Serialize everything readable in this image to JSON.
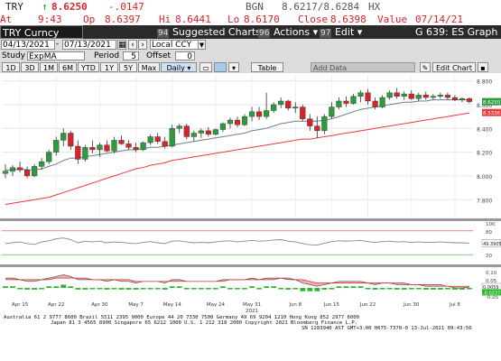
{
  "quote": {
    "ticker": "TRY",
    "arrow": "↑",
    "last": "8.6250",
    "change": "-.0147",
    "bgn_label": "BGN",
    "bid_ask": "8.6217/8.6284",
    "cursor_code": "HX",
    "at_label": "At",
    "time": "9:43",
    "op_label": "Op",
    "open": "8.6397",
    "hi_label": "Hi",
    "high": "8.6441",
    "lo_label": "Lo",
    "low": "8.6170",
    "close_label": "Close",
    "close": "8.6398",
    "value_label": "Value",
    "date": "07/14/21"
  },
  "toolbar": {
    "security": "TRY Curncy",
    "suggested_num": "94",
    "suggested": "Suggested Charts",
    "actions_num": "96",
    "actions": "Actions ▾",
    "edit_num": "97",
    "edit": "Edit ▾",
    "function": "G 639: ES Graph"
  },
  "dates": {
    "start": "04/13/2021",
    "end": "07/13/2021",
    "currency": "Local CCY"
  },
  "study": {
    "study_label": "Study",
    "study_value": "ExpMA",
    "period_label": "Period",
    "period_value": "5",
    "offset_label": "Offset",
    "offset_value": "0"
  },
  "periods": {
    "buttons": [
      "1D",
      "3D",
      "1M",
      "6M",
      "YTD",
      "1Y",
      "5Y",
      "Max"
    ],
    "frequency": "Daily ▾",
    "table": "Table",
    "add_data": "Add Data",
    "edit_chart": "Edit Chart"
  },
  "colors": {
    "up_candle": "#2e9a3e",
    "down_candle": "#d8232a",
    "ema_short": "#6a7f8a",
    "ema_long": "#e83a3a",
    "last_price_tag": "#2e9a3e",
    "long_tag": "#e83a3a",
    "rsi_line": "#888888",
    "macd_fill": "#f4b3b3",
    "hist_bar": "#2db52d"
  },
  "chart_data": {
    "type": "candlestick",
    "ylim": [
      7.65,
      8.85
    ],
    "y_ticks": [
      "8.800",
      "8.600",
      "8.400",
      "8.200",
      "8.000",
      "7.800"
    ],
    "x_labels": [
      "Apr 15",
      "Apr 22",
      "Apr 30",
      "May 7",
      "May 14",
      "May 24",
      "May 31",
      "Jun 8",
      "Jun 15",
      "Jun 22",
      "Jun 30",
      "Jul 8"
    ],
    "x_label_index": [
      2,
      7,
      13,
      18,
      23,
      29,
      34,
      40,
      45,
      50,
      56,
      62
    ],
    "year_label": "2021",
    "year_label_index": 34,
    "last_price_label": "8.6250",
    "long_ma_label": "8.5336",
    "candles": [
      {
        "o": 8.02,
        "h": 8.1,
        "l": 7.98,
        "c": 8.04
      },
      {
        "o": 8.04,
        "h": 8.09,
        "l": 8.0,
        "c": 8.07
      },
      {
        "o": 8.07,
        "h": 8.12,
        "l": 8.03,
        "c": 8.05
      },
      {
        "o": 8.05,
        "h": 8.08,
        "l": 7.98,
        "c": 8.0
      },
      {
        "o": 8.0,
        "h": 8.1,
        "l": 7.99,
        "c": 8.08
      },
      {
        "o": 8.08,
        "h": 8.15,
        "l": 8.05,
        "c": 8.12
      },
      {
        "o": 8.12,
        "h": 8.22,
        "l": 8.1,
        "c": 8.2
      },
      {
        "o": 8.2,
        "h": 8.33,
        "l": 8.17,
        "c": 8.3
      },
      {
        "o": 8.3,
        "h": 8.4,
        "l": 8.25,
        "c": 8.36
      },
      {
        "o": 8.36,
        "h": 8.38,
        "l": 8.22,
        "c": 8.25
      },
      {
        "o": 8.25,
        "h": 8.3,
        "l": 8.1,
        "c": 8.14
      },
      {
        "o": 8.14,
        "h": 8.26,
        "l": 8.12,
        "c": 8.24
      },
      {
        "o": 8.24,
        "h": 8.3,
        "l": 8.19,
        "c": 8.22
      },
      {
        "o": 8.22,
        "h": 8.28,
        "l": 8.16,
        "c": 8.26
      },
      {
        "o": 8.26,
        "h": 8.3,
        "l": 8.2,
        "c": 8.21
      },
      {
        "o": 8.21,
        "h": 8.33,
        "l": 8.19,
        "c": 8.3
      },
      {
        "o": 8.3,
        "h": 8.34,
        "l": 8.26,
        "c": 8.27
      },
      {
        "o": 8.27,
        "h": 8.3,
        "l": 8.22,
        "c": 8.24
      },
      {
        "o": 8.24,
        "h": 8.28,
        "l": 8.2,
        "c": 8.22
      },
      {
        "o": 8.22,
        "h": 8.29,
        "l": 8.21,
        "c": 8.28
      },
      {
        "o": 8.28,
        "h": 8.35,
        "l": 8.26,
        "c": 8.33
      },
      {
        "o": 8.33,
        "h": 8.36,
        "l": 8.27,
        "c": 8.29
      },
      {
        "o": 8.29,
        "h": 8.33,
        "l": 8.23,
        "c": 8.25
      },
      {
        "o": 8.25,
        "h": 8.43,
        "l": 8.24,
        "c": 8.4
      },
      {
        "o": 8.4,
        "h": 8.44,
        "l": 8.36,
        "c": 8.42
      },
      {
        "o": 8.42,
        "h": 8.44,
        "l": 8.31,
        "c": 8.33
      },
      {
        "o": 8.33,
        "h": 8.38,
        "l": 8.29,
        "c": 8.36
      },
      {
        "o": 8.36,
        "h": 8.4,
        "l": 8.32,
        "c": 8.38
      },
      {
        "o": 8.38,
        "h": 8.41,
        "l": 8.33,
        "c": 8.35
      },
      {
        "o": 8.35,
        "h": 8.4,
        "l": 8.34,
        "c": 8.39
      },
      {
        "o": 8.39,
        "h": 8.45,
        "l": 8.37,
        "c": 8.44
      },
      {
        "o": 8.44,
        "h": 8.49,
        "l": 8.4,
        "c": 8.47
      },
      {
        "o": 8.47,
        "h": 8.5,
        "l": 8.41,
        "c": 8.43
      },
      {
        "o": 8.43,
        "h": 8.52,
        "l": 8.42,
        "c": 8.5
      },
      {
        "o": 8.5,
        "h": 8.58,
        "l": 8.46,
        "c": 8.54
      },
      {
        "o": 8.54,
        "h": 8.58,
        "l": 8.47,
        "c": 8.5
      },
      {
        "o": 8.5,
        "h": 8.7,
        "l": 8.48,
        "c": 8.55
      },
      {
        "o": 8.55,
        "h": 8.62,
        "l": 8.53,
        "c": 8.6
      },
      {
        "o": 8.6,
        "h": 8.66,
        "l": 8.57,
        "c": 8.63
      },
      {
        "o": 8.63,
        "h": 8.64,
        "l": 8.55,
        "c": 8.57
      },
      {
        "o": 8.57,
        "h": 8.62,
        "l": 8.53,
        "c": 8.58
      },
      {
        "o": 8.58,
        "h": 8.6,
        "l": 8.46,
        "c": 8.48
      },
      {
        "o": 8.48,
        "h": 8.52,
        "l": 8.38,
        "c": 8.42
      },
      {
        "o": 8.42,
        "h": 8.5,
        "l": 8.32,
        "c": 8.38
      },
      {
        "o": 8.38,
        "h": 8.52,
        "l": 8.35,
        "c": 8.5
      },
      {
        "o": 8.5,
        "h": 8.62,
        "l": 8.48,
        "c": 8.58
      },
      {
        "o": 8.58,
        "h": 8.66,
        "l": 8.56,
        "c": 8.63
      },
      {
        "o": 8.63,
        "h": 8.67,
        "l": 8.58,
        "c": 8.61
      },
      {
        "o": 8.61,
        "h": 8.69,
        "l": 8.6,
        "c": 8.67
      },
      {
        "o": 8.67,
        "h": 8.72,
        "l": 8.62,
        "c": 8.7
      },
      {
        "o": 8.7,
        "h": 8.73,
        "l": 8.6,
        "c": 8.63
      },
      {
        "o": 8.63,
        "h": 8.66,
        "l": 8.56,
        "c": 8.58
      },
      {
        "o": 8.58,
        "h": 8.68,
        "l": 8.57,
        "c": 8.66
      },
      {
        "o": 8.66,
        "h": 8.72,
        "l": 8.64,
        "c": 8.7
      },
      {
        "o": 8.7,
        "h": 8.74,
        "l": 8.65,
        "c": 8.67
      },
      {
        "o": 8.67,
        "h": 8.71,
        "l": 8.64,
        "c": 8.69
      },
      {
        "o": 8.69,
        "h": 8.72,
        "l": 8.64,
        "c": 8.65
      },
      {
        "o": 8.65,
        "h": 8.7,
        "l": 8.63,
        "c": 8.68
      },
      {
        "o": 8.68,
        "h": 8.71,
        "l": 8.64,
        "c": 8.66
      },
      {
        "o": 8.66,
        "h": 8.69,
        "l": 8.64,
        "c": 8.67
      },
      {
        "o": 8.67,
        "h": 8.7,
        "l": 8.65,
        "c": 8.68
      },
      {
        "o": 8.68,
        "h": 8.7,
        "l": 8.64,
        "c": 8.66
      },
      {
        "o": 8.66,
        "h": 8.68,
        "l": 8.63,
        "c": 8.64
      },
      {
        "o": 8.64,
        "h": 8.66,
        "l": 8.62,
        "c": 8.65
      },
      {
        "o": 8.65,
        "h": 8.66,
        "l": 8.61,
        "c": 8.625
      }
    ],
    "ema_short": [
      8.05,
      8.05,
      8.06,
      8.05,
      8.05,
      8.06,
      8.08,
      8.1,
      8.13,
      8.15,
      8.15,
      8.16,
      8.17,
      8.18,
      8.19,
      8.2,
      8.21,
      8.22,
      8.22,
      8.23,
      8.24,
      8.24,
      8.25,
      8.26,
      8.27,
      8.28,
      8.29,
      8.3,
      8.31,
      8.32,
      8.33,
      8.34,
      8.35,
      8.36,
      8.38,
      8.39,
      8.4,
      8.42,
      8.44,
      8.45,
      8.46,
      8.46,
      8.46,
      8.46,
      8.47,
      8.48,
      8.5,
      8.52,
      8.54,
      8.56,
      8.57,
      8.58,
      8.59,
      8.6,
      8.61,
      8.62,
      8.62,
      8.63,
      8.63,
      8.64,
      8.64,
      8.64,
      8.64,
      8.64,
      8.64
    ],
    "ema_long": [
      7.76,
      7.77,
      7.78,
      7.79,
      7.8,
      7.81,
      7.82,
      7.84,
      7.86,
      7.88,
      7.9,
      7.92,
      7.94,
      7.96,
      7.98,
      8.0,
      8.02,
      8.04,
      8.06,
      8.07,
      8.09,
      8.1,
      8.11,
      8.13,
      8.14,
      8.15,
      8.16,
      8.17,
      8.18,
      8.19,
      8.2,
      8.21,
      8.22,
      8.23,
      8.24,
      8.25,
      8.26,
      8.27,
      8.28,
      8.29,
      8.3,
      8.31,
      8.31,
      8.32,
      8.33,
      8.34,
      8.35,
      8.36,
      8.37,
      8.38,
      8.39,
      8.4,
      8.41,
      8.42,
      8.43,
      8.44,
      8.45,
      8.46,
      8.47,
      8.48,
      8.49,
      8.5,
      8.51,
      8.52,
      8.53
    ],
    "rsi": {
      "ylim": [
        0,
        100
      ],
      "y_ticks": [
        "100",
        "80",
        "20"
      ],
      "last_label": "49.3905",
      "values": [
        48,
        50,
        52,
        48,
        46,
        52,
        55,
        60,
        62,
        58,
        50,
        54,
        52,
        54,
        50,
        52,
        51,
        49,
        48,
        51,
        53,
        50,
        48,
        54,
        55,
        52,
        50,
        51,
        50,
        52,
        54,
        55,
        52,
        54,
        56,
        54,
        55,
        57,
        58,
        54,
        52,
        48,
        45,
        44,
        49,
        53,
        55,
        54,
        55,
        56,
        53,
        51,
        53,
        54,
        52,
        53,
        51,
        52,
        51,
        51,
        52,
        51,
        50,
        50,
        49
      ]
    },
    "macd": {
      "y_ticks": [
        "0.10",
        "0.05",
        "0.00",
        "-0.05"
      ],
      "last_label_1": "0.0059",
      "last_label_2": "-0.0237",
      "macd_values": [
        0.06,
        0.06,
        0.05,
        0.04,
        0.04,
        0.05,
        0.06,
        0.07,
        0.08,
        0.07,
        0.05,
        0.05,
        0.05,
        0.05,
        0.04,
        0.05,
        0.04,
        0.04,
        0.03,
        0.04,
        0.04,
        0.04,
        0.03,
        0.05,
        0.05,
        0.04,
        0.04,
        0.04,
        0.04,
        0.04,
        0.05,
        0.05,
        0.05,
        0.05,
        0.06,
        0.05,
        0.06,
        0.06,
        0.06,
        0.05,
        0.05,
        0.03,
        0.02,
        0.01,
        0.02,
        0.03,
        0.04,
        0.04,
        0.04,
        0.04,
        0.03,
        0.02,
        0.03,
        0.03,
        0.02,
        0.02,
        0.02,
        0.02,
        0.01,
        0.01,
        0.01,
        0.01,
        0.0,
        0.0,
        0.006
      ],
      "signal_values": [
        0.05,
        0.05,
        0.05,
        0.05,
        0.05,
        0.05,
        0.05,
        0.06,
        0.06,
        0.06,
        0.06,
        0.06,
        0.05,
        0.05,
        0.05,
        0.05,
        0.05,
        0.05,
        0.04,
        0.04,
        0.04,
        0.04,
        0.04,
        0.04,
        0.04,
        0.04,
        0.04,
        0.04,
        0.04,
        0.04,
        0.04,
        0.05,
        0.05,
        0.05,
        0.05,
        0.05,
        0.05,
        0.05,
        0.06,
        0.06,
        0.05,
        0.05,
        0.04,
        0.03,
        0.03,
        0.03,
        0.03,
        0.03,
        0.03,
        0.03,
        0.03,
        0.03,
        0.03,
        0.03,
        0.03,
        0.03,
        0.02,
        0.02,
        0.02,
        0.02,
        0.02,
        0.01,
        0.01,
        0.01,
        0.01
      ],
      "hist_values": [
        0.01,
        0.01,
        0.0,
        -0.01,
        -0.01,
        0.0,
        0.01,
        0.01,
        0.02,
        0.01,
        -0.01,
        -0.01,
        0.0,
        0.0,
        -0.01,
        0.0,
        -0.01,
        -0.01,
        -0.01,
        0.0,
        0.0,
        0.0,
        -0.01,
        0.01,
        0.01,
        0.0,
        0.0,
        0.0,
        0.0,
        0.0,
        0.01,
        0.0,
        0.0,
        0.0,
        0.01,
        0.0,
        0.01,
        0.01,
        0.0,
        -0.01,
        0.0,
        -0.02,
        -0.02,
        -0.02,
        -0.01,
        0.0,
        0.01,
        0.01,
        0.01,
        0.01,
        0.0,
        -0.01,
        0.0,
        0.0,
        -0.01,
        -0.01,
        0.0,
        0.0,
        -0.01,
        -0.01,
        -0.01,
        0.0,
        -0.01,
        -0.01,
        -0.004
      ]
    }
  },
  "footer": {
    "line1": "Australia 61 2 9777 8600 Brazil 5511 2395 9000 Europe 44 20 7330 7500 Germany 49 69 9204 1210 Hong Kong 852 2977 6000",
    "line2": "Japan 81 3 4565 8900          Singapore 65 6212 1000     U.S. 1 212 318 2000            Copyright 2021 Bloomberg Finance L.P.",
    "line3": "SN 1283940 AST  GMT+3:00 H675-7370-0 13-Jul-2021 09:43:56"
  }
}
